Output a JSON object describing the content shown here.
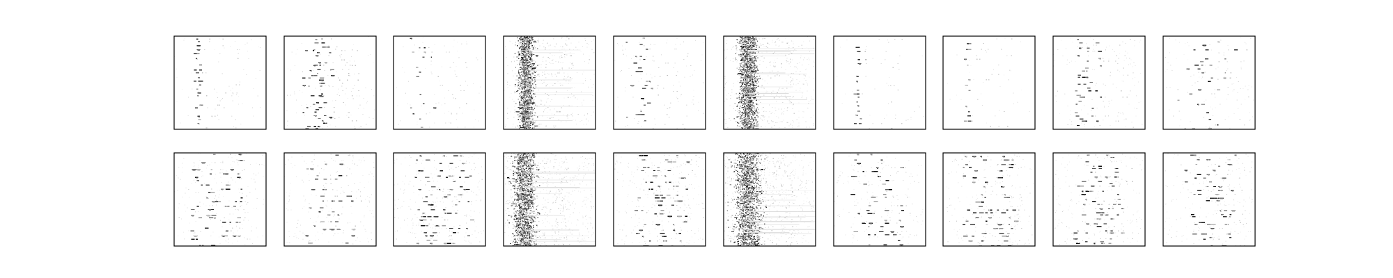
{
  "chart_data": {
    "type": "heatmap",
    "title": "",
    "layout": {
      "rows": 2,
      "columns": 10
    },
    "axes": {
      "ticks": "none",
      "tick_labels": "none",
      "frame": true
    },
    "colors": {
      "background": "#ffffff",
      "frame": "#000000",
      "ink": "#000000"
    },
    "colormap": "grayscale-inverted",
    "value_range": [
      0,
      1
    ],
    "panels": [
      {
        "row": 1,
        "col": 1,
        "pattern": "column-band",
        "band": {
          "center": 0.25,
          "spread": 0.02
        },
        "row_ticks": {
          "count": 24,
          "jitter": 0.02
        },
        "density": 0.55,
        "strength": 0.95,
        "noise": 0.02
      },
      {
        "row": 1,
        "col": 2,
        "pattern": "column-band",
        "band": {
          "center": 0.35,
          "spread": 0.08
        },
        "row_ticks": {
          "count": 42,
          "jitter": 0.03
        },
        "density": 0.75,
        "strength": 1.0,
        "noise": 0.03
      },
      {
        "row": 1,
        "col": 3,
        "pattern": "column-band",
        "band": {
          "center": 0.3,
          "spread": 0.07
        },
        "row_ticks": {
          "count": 20,
          "jitter": 0.02
        },
        "density": 0.55,
        "strength": 0.9,
        "noise": 0.02
      },
      {
        "row": 1,
        "col": 4,
        "pattern": "smear",
        "band": {
          "center": 0.24,
          "spread": 0.04
        },
        "row_ticks": {
          "count": 60,
          "jitter": 0.01
        },
        "density": 0.85,
        "strength": 1.0,
        "noise": 0.1
      },
      {
        "row": 1,
        "col": 5,
        "pattern": "column-band",
        "band": {
          "center": 0.32,
          "spread": 0.08
        },
        "row_ticks": {
          "count": 26,
          "jitter": 0.03
        },
        "density": 0.7,
        "strength": 1.0,
        "noise": 0.03
      },
      {
        "row": 1,
        "col": 6,
        "pattern": "smear",
        "band": {
          "center": 0.26,
          "spread": 0.05
        },
        "row_ticks": {
          "count": 60,
          "jitter": 0.01
        },
        "density": 0.9,
        "strength": 1.0,
        "noise": 0.14
      },
      {
        "row": 1,
        "col": 7,
        "pattern": "column-band",
        "band": {
          "center": 0.25,
          "spread": 0.015
        },
        "row_ticks": {
          "count": 22,
          "jitter": 0.02
        },
        "density": 0.5,
        "strength": 0.9,
        "noise": 0.01
      },
      {
        "row": 1,
        "col": 8,
        "pattern": "column-band",
        "band": {
          "center": 0.25,
          "spread": 0.015
        },
        "row_ticks": {
          "count": 18,
          "jitter": 0.02
        },
        "density": 0.45,
        "strength": 0.85,
        "noise": 0.01
      },
      {
        "row": 1,
        "col": 9,
        "pattern": "column-band",
        "band": {
          "center": 0.35,
          "spread": 0.1
        },
        "row_ticks": {
          "count": 28,
          "jitter": 0.03
        },
        "density": 0.7,
        "strength": 1.0,
        "noise": 0.04
      },
      {
        "row": 1,
        "col": 10,
        "pattern": "column-band",
        "band": {
          "center": 0.45,
          "spread": 0.16
        },
        "row_ticks": {
          "count": 24,
          "jitter": 0.03
        },
        "density": 0.65,
        "strength": 0.95,
        "noise": 0.03
      },
      {
        "row": 2,
        "col": 1,
        "pattern": "scatter",
        "band": {
          "center": 0.35,
          "spread": 0.22
        },
        "row_ticks": {
          "count": 22,
          "jitter": 0.03
        },
        "density": 0.6,
        "strength": 0.95,
        "noise": 0.06
      },
      {
        "row": 2,
        "col": 2,
        "pattern": "scatter",
        "band": {
          "center": 0.38,
          "spread": 0.2
        },
        "row_ticks": {
          "count": 20,
          "jitter": 0.03
        },
        "density": 0.5,
        "strength": 0.9,
        "noise": 0.06
      },
      {
        "row": 2,
        "col": 3,
        "pattern": "scatter",
        "band": {
          "center": 0.4,
          "spread": 0.24
        },
        "row_ticks": {
          "count": 24,
          "jitter": 0.03
        },
        "density": 0.7,
        "strength": 1.0,
        "noise": 0.08
      },
      {
        "row": 2,
        "col": 4,
        "pattern": "smear",
        "band": {
          "center": 0.22,
          "spread": 0.06
        },
        "row_ticks": {
          "count": 60,
          "jitter": 0.01
        },
        "density": 0.85,
        "strength": 1.0,
        "noise": 0.18
      },
      {
        "row": 2,
        "col": 5,
        "pattern": "scatter",
        "band": {
          "center": 0.4,
          "spread": 0.22
        },
        "row_ticks": {
          "count": 24,
          "jitter": 0.03
        },
        "density": 0.65,
        "strength": 1.0,
        "noise": 0.08
      },
      {
        "row": 2,
        "col": 6,
        "pattern": "smear",
        "band": {
          "center": 0.26,
          "spread": 0.07
        },
        "row_ticks": {
          "count": 60,
          "jitter": 0.01
        },
        "density": 0.9,
        "strength": 1.0,
        "noise": 0.2
      },
      {
        "row": 2,
        "col": 7,
        "pattern": "scatter",
        "band": {
          "center": 0.35,
          "spread": 0.22
        },
        "row_ticks": {
          "count": 22,
          "jitter": 0.03
        },
        "density": 0.55,
        "strength": 0.95,
        "noise": 0.05
      },
      {
        "row": 2,
        "col": 8,
        "pattern": "scatter",
        "band": {
          "center": 0.38,
          "spread": 0.22
        },
        "row_ticks": {
          "count": 24,
          "jitter": 0.03
        },
        "density": 0.65,
        "strength": 1.0,
        "noise": 0.06
      },
      {
        "row": 2,
        "col": 9,
        "pattern": "scatter",
        "band": {
          "center": 0.38,
          "spread": 0.22
        },
        "row_ticks": {
          "count": 26,
          "jitter": 0.03
        },
        "density": 0.65,
        "strength": 1.0,
        "noise": 0.06
      },
      {
        "row": 2,
        "col": 10,
        "pattern": "scatter",
        "band": {
          "center": 0.4,
          "spread": 0.22
        },
        "row_ticks": {
          "count": 24,
          "jitter": 0.03
        },
        "density": 0.65,
        "strength": 1.0,
        "noise": 0.06
      }
    ]
  }
}
